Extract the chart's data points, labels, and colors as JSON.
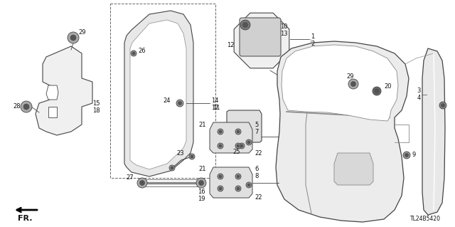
{
  "bg_color": "#ffffff",
  "diagram_code": "TL24B5420",
  "line_color": "#444444",
  "lw": 0.7
}
